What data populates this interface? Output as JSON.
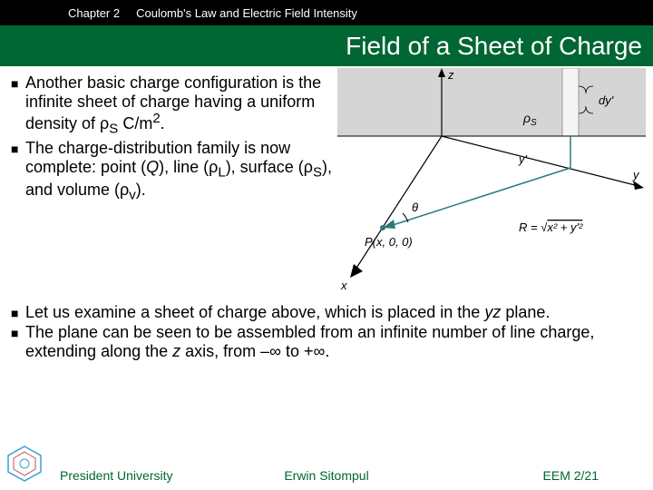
{
  "header": {
    "chapter": "Chapter 2",
    "subject": "Coulomb's Law and Electric Field Intensity"
  },
  "title": "Field of a Sheet of Charge",
  "bullets_upper": [
    {
      "text": "Another basic charge configuration is the infinite sheet of charge having a uniform density of ρ<sub>S</sub> C/m<sup>2</sup>."
    },
    {
      "text": "The charge-distribution family is now complete: point (<i>Q</i>), line (ρ<sub>L</sub>), surface (ρ<sub>S</sub>), and volume (ρ<sub>v</sub>)."
    }
  ],
  "bullets_lower": [
    {
      "text": "Let us examine a sheet of charge above, which is placed in the <i>yz</i> plane."
    },
    {
      "text": "The plane can be seen to be assembled from an infinite number of line charge, extending along the <i>z</i> axis, from –∞ to +∞."
    }
  ],
  "footer": {
    "left": "President University",
    "center": "Erwin Sitompul",
    "right": "EEM 2/21"
  },
  "colors": {
    "header_bg": "#000000",
    "title_bg": "#006633",
    "footer_text": "#006633",
    "diagram_shade": "#d5d5d5",
    "diagram_axis": "#000000",
    "diagram_line_teal": "#2a7a7a"
  },
  "diagram": {
    "type": "infographic",
    "labels": {
      "z_axis": "z",
      "y_axis": "y",
      "x_axis": "x",
      "dy": "dy'",
      "rho": "ρS",
      "yprime": "y'",
      "theta": "θ",
      "point": "P(x, 0, 0)",
      "R": "R = √(x² + y'²)"
    }
  }
}
